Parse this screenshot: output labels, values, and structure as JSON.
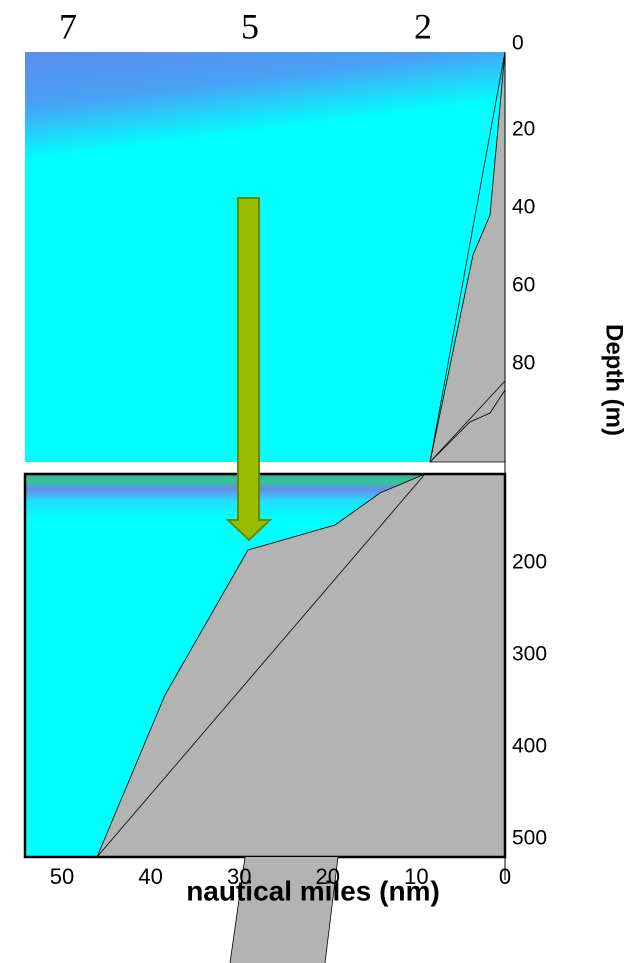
{
  "station_labels": [
    "7",
    "5",
    "2"
  ],
  "upper_depth_ticks": [
    0,
    20,
    40,
    60,
    80
  ],
  "lower_depth_ticks": [
    200,
    300,
    400,
    500
  ],
  "x_ticks": [
    50,
    40,
    30,
    20,
    10,
    0
  ],
  "x_label": "nautical miles (nm)",
  "y_label": "Depth (m)"
}
